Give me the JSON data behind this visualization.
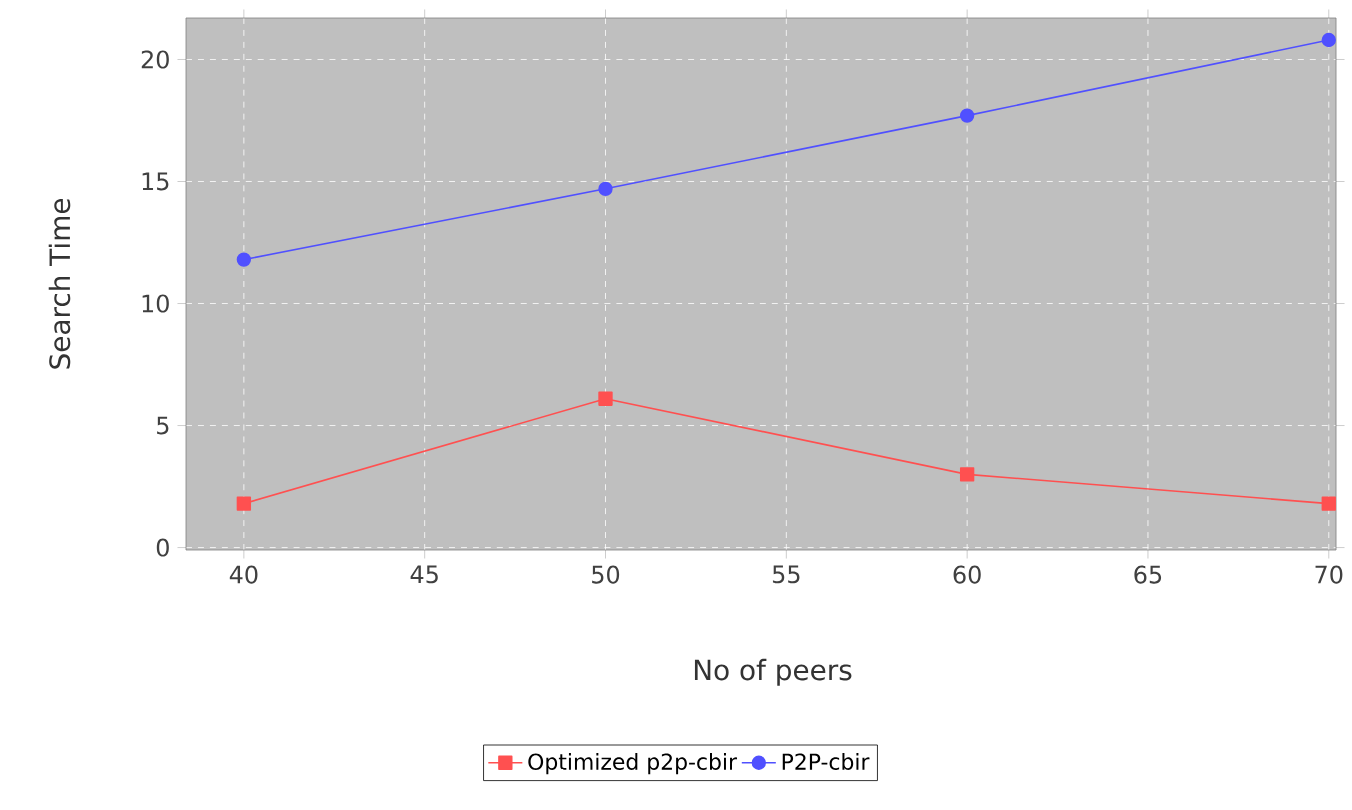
{
  "chart_data": {
    "type": "line",
    "xlabel": "No of peers",
    "ylabel": "Search Time",
    "x": [
      40,
      50,
      60,
      70
    ],
    "series": [
      {
        "name": "Optimized p2p-cbir",
        "color": "#ff5050",
        "marker": "square",
        "values": [
          1.8,
          6.1,
          3.0,
          1.8
        ]
      },
      {
        "name": "P2P-cbir",
        "color": "#5050ff",
        "marker": "circle",
        "values": [
          11.8,
          14.7,
          17.7,
          20.8
        ]
      }
    ],
    "xlim": [
      38.4,
      70.2
    ],
    "ylim": [
      -0.1,
      21.7
    ],
    "xticks": [
      40,
      45,
      50,
      55,
      60,
      65,
      70
    ],
    "yticks": [
      0,
      5,
      10,
      15,
      20
    ],
    "grid": true,
    "legend": "bottom",
    "line_style": "solid"
  }
}
